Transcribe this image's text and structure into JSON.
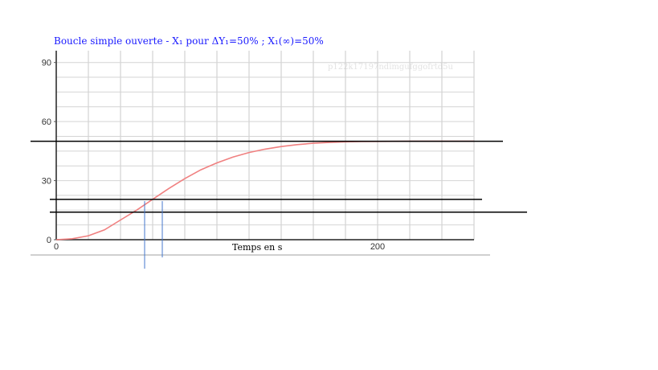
{
  "chart_data": {
    "type": "line",
    "title": "Boucle simple ouverte - X₁ pour ΔY₁=50% ; X₁(∞)=50%",
    "xlabel": "Temps en s",
    "ylabel": "",
    "watermark": "p122k17197ndimgufggofrtd5u",
    "xlim": [
      0,
      260
    ],
    "ylim": [
      0,
      96
    ],
    "x_ticks": [
      0,
      200
    ],
    "y_ticks": [
      0,
      30,
      60,
      90
    ],
    "grid": true,
    "series": [
      {
        "color": "#f08080",
        "x": [
          0,
          10,
          20,
          30,
          40,
          50,
          60,
          70,
          80,
          90,
          100,
          110,
          120,
          130,
          140,
          150,
          160,
          170,
          180,
          190,
          200,
          210,
          220,
          230,
          240,
          250,
          260
        ],
        "y": [
          0,
          0.5,
          2,
          5,
          10,
          15,
          20.5,
          26,
          31,
          35.5,
          39,
          42,
          44.3,
          46,
          47.3,
          48.3,
          49,
          49.4,
          49.7,
          49.85,
          49.93,
          49.97,
          50,
          50,
          50,
          50,
          50
        ]
      }
    ],
    "reference_lines": [
      {
        "y": 50,
        "color": "#000000"
      },
      {
        "y": 20.5,
        "color": "#000000"
      },
      {
        "y": 14,
        "color": "#000000"
      },
      {
        "x": 55,
        "color": "#4477cc"
      },
      {
        "x": 66,
        "color": "#4477cc"
      }
    ]
  }
}
